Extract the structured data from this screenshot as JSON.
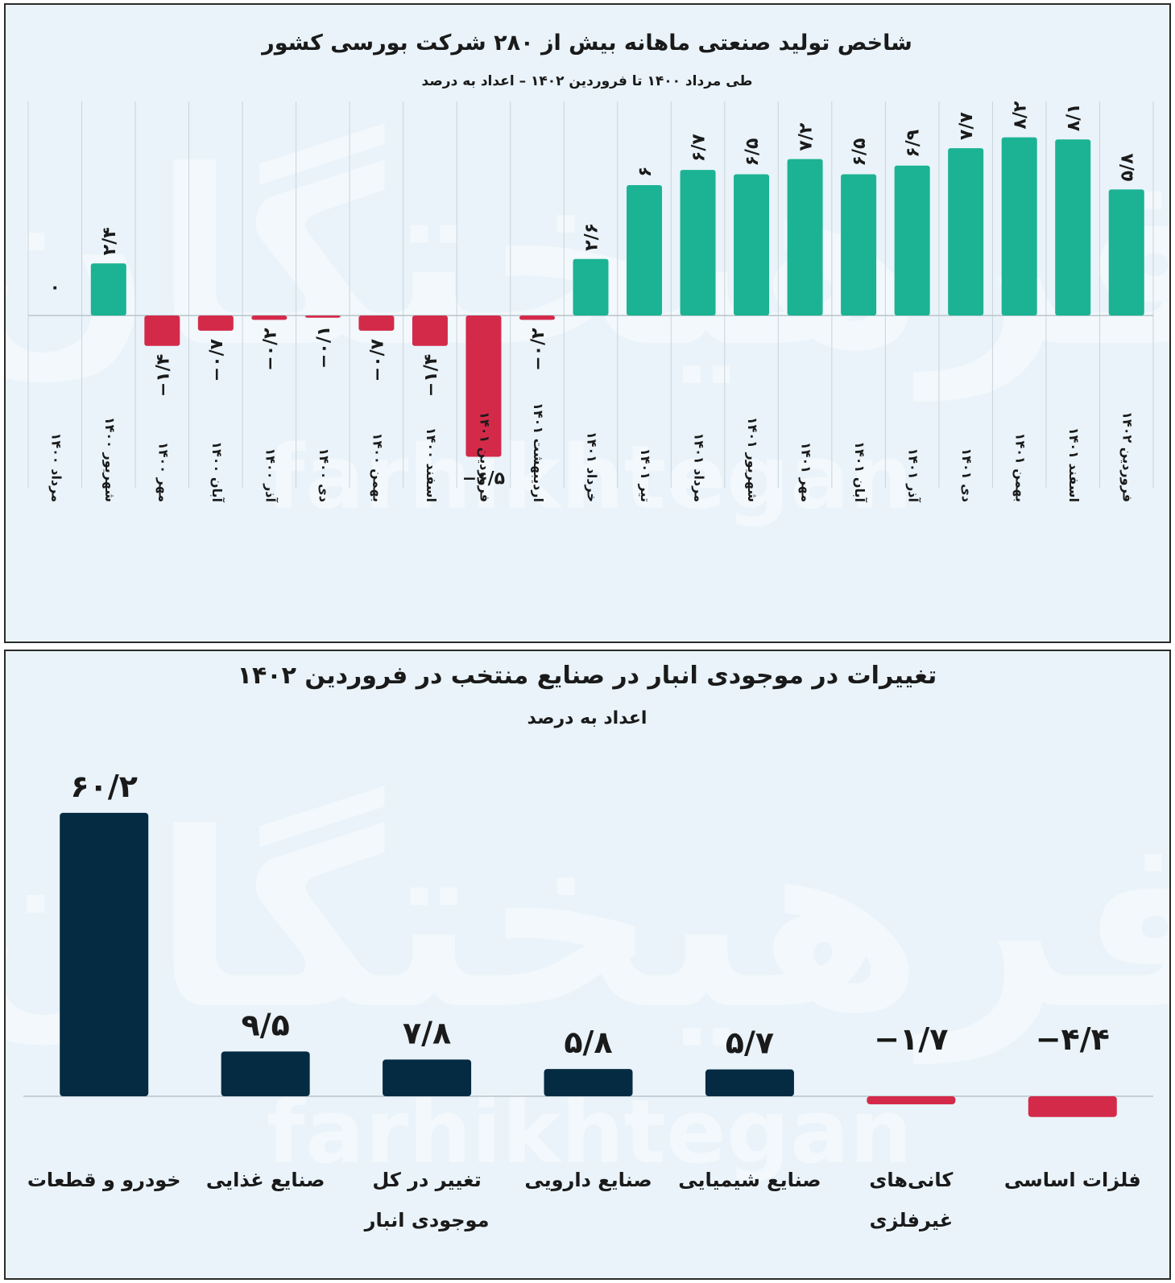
{
  "colors": {
    "positive_top": "#1bb394",
    "negative": "#d42a4a",
    "positive_bottom": "#052b43",
    "background": "#e9f3f9"
  },
  "watermark": {
    "fa": "فرهیختگان",
    "en": "farhikhtegan"
  },
  "chart_data": [
    {
      "type": "bar",
      "title": "شاخص تولید صنعتی ماهانه بیش از ۲۸۰ شرکت بورسی کشور",
      "subtitle": "طی مرداد ۱۴۰۰ تا فروردین ۱۴۰۲ – اعداد به درصد",
      "categories": [
        "مرداد ۱۴۰۰",
        "شهریور ۱۴۰۰",
        "مهر ۱۴۰۰",
        "آبان ۱۴۰۰",
        "آذر ۱۴۰۰",
        "دی ۱۴۰۰",
        "بهمن ۱۴۰۰",
        "اسفند ۱۴۰۰",
        "فروردین ۱۴۰۱",
        "اردیبهشت ۱۴۰۱",
        "خرداد ۱۴۰۱",
        "تیر ۱۴۰۱",
        "مرداد ۱۴۰۱",
        "شهریور ۱۴۰۱",
        "مهر ۱۴۰۱",
        "آبان ۱۴۰۱",
        "آذر ۱۴۰۱",
        "دی ۱۴۰۱",
        "بهمن ۱۴۰۱",
        "اسفند ۱۴۰۱",
        "فروردین ۱۴۰۲"
      ],
      "values": [
        0,
        2.4,
        -1.4,
        -0.7,
        -0.2,
        -0.1,
        -0.7,
        -1.4,
        -6.5,
        -0.2,
        2.6,
        6,
        6.7,
        6.5,
        7.2,
        6.5,
        6.9,
        7.7,
        8.2,
        8.1,
        5.8
      ],
      "value_labels": [
        "۰",
        "۲/۴",
        "−۱/۴",
        "−۰/۷",
        "−۰/۲",
        "−۰/۱",
        "−۰/۷",
        "−۱/۴",
        "−۶/۵",
        "−۰/۲",
        "۲/۶",
        "۶",
        "۶/۷",
        "۶/۵",
        "۷/۲",
        "۶/۵",
        "۶/۹",
        "۷/۷",
        "۸/۲",
        "۸/۱",
        "۵/۸"
      ],
      "ylim": [
        -7,
        9
      ]
    },
    {
      "type": "bar",
      "title": "تغییرات در موجودی انبار در صنایع منتخب در فروردین ۱۴۰۲",
      "subtitle": "اعداد به درصد",
      "categories": [
        "خودرو و قطعات",
        "صنایع غذایی",
        "تغییر در کل موجودی انبار",
        "صنایع دارویی",
        "صنایع شیمیایی",
        "کانی‌های غیرفلزی",
        "فلزات اساسی"
      ],
      "category_lines": [
        [
          "خودرو و قطعات"
        ],
        [
          "صنایع غذایی"
        ],
        [
          "تغییر در کل",
          "موجودی انبار"
        ],
        [
          "صنایع دارویی"
        ],
        [
          "صنایع شیمیایی"
        ],
        [
          "کانی‌های",
          "غیرفلزی"
        ],
        [
          "فلزات اساسی"
        ]
      ],
      "values": [
        60.2,
        9.5,
        7.8,
        5.8,
        5.7,
        -1.7,
        -4.4
      ],
      "value_labels": [
        "۶۰/۲",
        "۹/۵",
        "۷/۸",
        "۵/۸",
        "۵/۷",
        "−۱/۷",
        "−۴/۴"
      ],
      "ylim": [
        -5,
        62
      ]
    }
  ]
}
